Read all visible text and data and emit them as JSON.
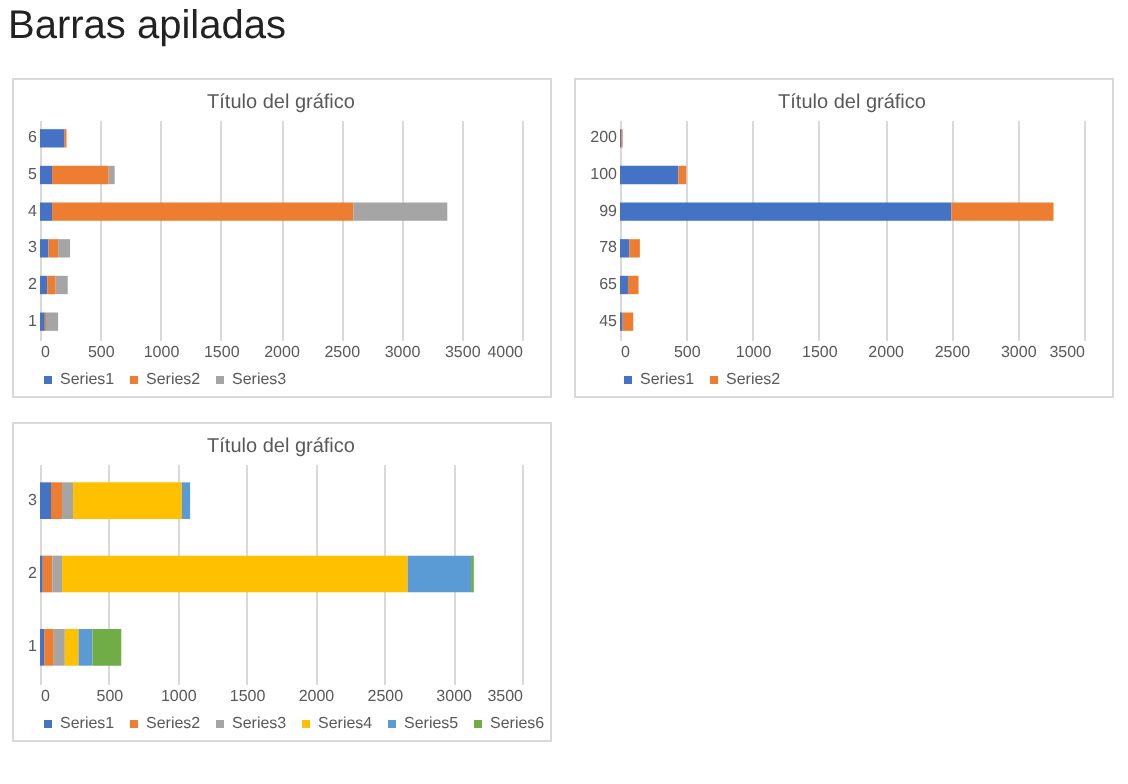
{
  "chart_data": [
    {
      "type": "other",
      "title": "Barras apiladas"
    },
    {
      "type": "bar",
      "title": "Título del gráfico",
      "orientation": "horizontal",
      "stacked": true,
      "categories": [
        "6",
        "5",
        "4",
        "3",
        "2",
        "1"
      ],
      "xlim": [
        0,
        4000
      ],
      "xticks": [
        0,
        500,
        1000,
        1500,
        2000,
        2500,
        3000,
        3500,
        4000
      ],
      "grid": "x",
      "legend": "bottom",
      "series": [
        {
          "name": "Series1",
          "color": "#4472c4",
          "values": [
            200,
            100,
            100,
            70,
            60,
            40
          ]
        },
        {
          "name": "Series2",
          "color": "#ed7d31",
          "values": [
            20,
            470,
            2500,
            80,
            70,
            10
          ]
        },
        {
          "name": "Series3",
          "color": "#a5a5a5",
          "values": [
            0,
            50,
            780,
            100,
            100,
            100
          ]
        }
      ]
    },
    {
      "type": "bar",
      "title": "Título del gráfico",
      "orientation": "horizontal",
      "stacked": true,
      "categories": [
        "200",
        "100",
        "99",
        "78",
        "65",
        "45"
      ],
      "xlim": [
        0,
        3500
      ],
      "xticks": [
        0,
        500,
        1000,
        1500,
        2000,
        2500,
        3000,
        3500
      ],
      "grid": "x",
      "legend": "bottom",
      "series": [
        {
          "name": "Series1",
          "color": "#4472c4",
          "values": [
            10,
            440,
            2500,
            70,
            60,
            20
          ]
        },
        {
          "name": "Series2",
          "color": "#ed7d31",
          "values": [
            10,
            60,
            770,
            80,
            80,
            80
          ]
        }
      ]
    },
    {
      "type": "bar",
      "title": "Título del gráfico",
      "orientation": "horizontal",
      "stacked": true,
      "categories": [
        "3",
        "2",
        "1"
      ],
      "xlim": [
        0,
        3500
      ],
      "xticks": [
        0,
        500,
        1000,
        1500,
        2000,
        2500,
        3000,
        3500
      ],
      "grid": "x",
      "legend": "bottom",
      "series": [
        {
          "name": "Series1",
          "color": "#4472c4",
          "values": [
            80,
            20,
            30
          ]
        },
        {
          "name": "Series2",
          "color": "#ed7d31",
          "values": [
            80,
            70,
            70
          ]
        },
        {
          "name": "Series3",
          "color": "#a5a5a5",
          "values": [
            80,
            70,
            80
          ]
        },
        {
          "name": "Series4",
          "color": "#ffc000",
          "values": [
            790,
            2510,
            100
          ]
        },
        {
          "name": "Series5",
          "color": "#5b9bd5",
          "values": [
            60,
            460,
            100
          ]
        },
        {
          "name": "Series6",
          "color": "#70ad47",
          "values": [
            0,
            20,
            210
          ]
        }
      ]
    }
  ]
}
